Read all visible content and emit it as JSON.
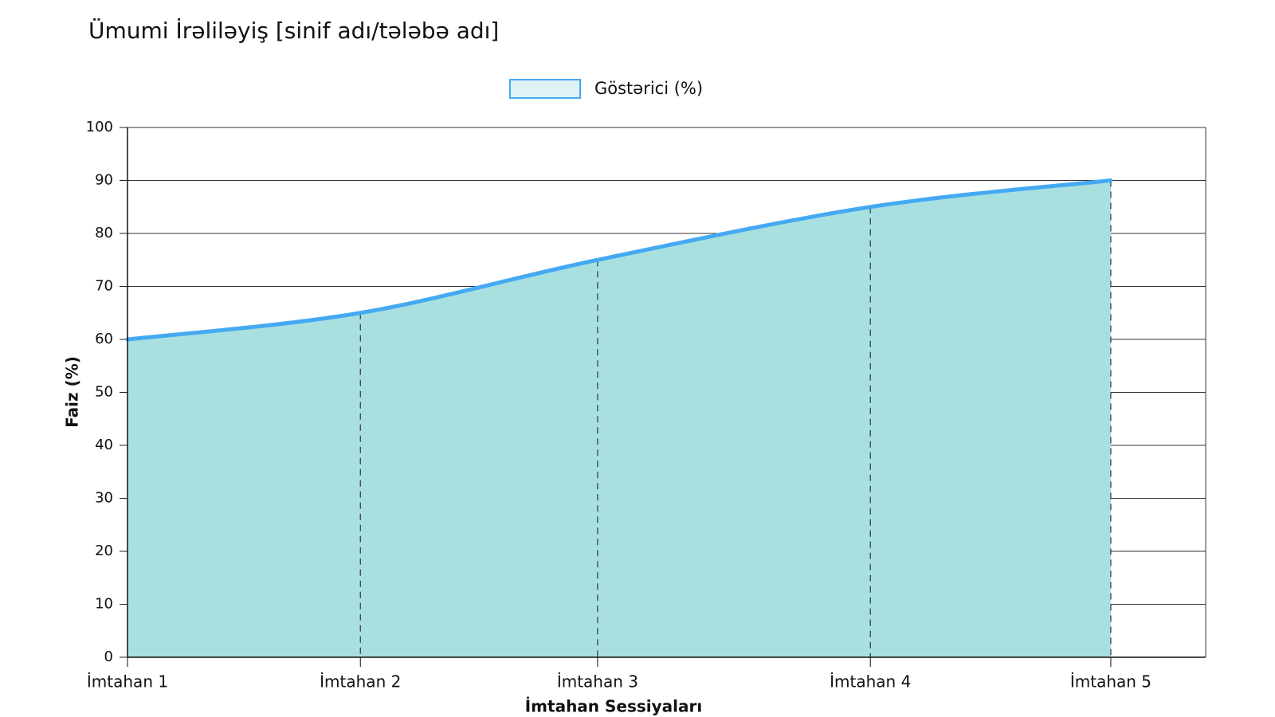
{
  "chart_data": {
    "type": "area",
    "title": "Ümumi İrəliləyiş [sinif adı/tələbə adı]",
    "x_label": "İmtahan Sessiyaları",
    "y_label": "Faiz (%)",
    "categories": [
      "İmtahan 1",
      "İmtahan 2",
      "İmtahan 3",
      "İmtahan 4",
      "İmtahan 5"
    ],
    "series": [
      {
        "name": "Göstərici (%)",
        "color": "#45a9f2",
        "fill": "#a8e0e0",
        "values": [
          60,
          65,
          75,
          85,
          90
        ]
      }
    ],
    "ylim": [
      0,
      100
    ],
    "yticks": [
      0,
      10,
      20,
      30,
      40,
      50,
      60,
      70,
      80,
      90,
      100
    ],
    "grid": true,
    "legend": "top"
  }
}
